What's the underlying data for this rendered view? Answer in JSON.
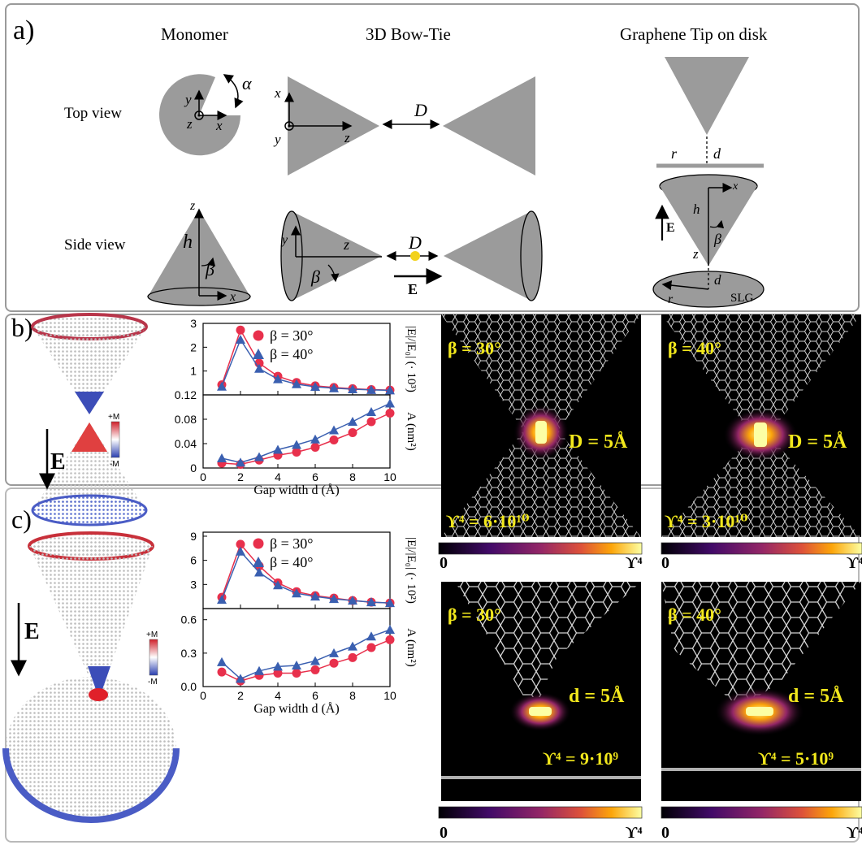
{
  "panel_a": {
    "label": "a)",
    "columns": [
      "Monomer",
      "3D Bow-Tie",
      "Graphene Tip on disk"
    ],
    "rows": [
      "Top view",
      "Side view"
    ],
    "symbols": {
      "alpha": "α",
      "beta": "β",
      "D": "D",
      "h": "h",
      "r": "r",
      "d": "d",
      "x": "x",
      "y": "y",
      "z": "z",
      "E": "E",
      "SLG": "SLG"
    }
  },
  "panel_b": {
    "label": "b)",
    "colorbar_plus": "+M",
    "colorbar_minus": "-M",
    "field_label": "E",
    "maps": [
      {
        "beta": "β = 30°",
        "gap": "D = 5Å",
        "upsilon": "ϒ⁴ = 6·10¹⁰"
      },
      {
        "beta": "β = 40°",
        "gap": "D = 5Å",
        "upsilon": "ϒ⁴ = 3·10¹⁰"
      }
    ],
    "scale_min": "0",
    "scale_max": "ϒ⁴"
  },
  "panel_c": {
    "label": "c)",
    "colorbar_plus": "+M",
    "colorbar_minus": "-M",
    "field_label": "E",
    "maps": [
      {
        "beta": "β = 30°",
        "gap": "d = 5Å",
        "upsilon": "ϒ⁴ = 9·10⁹"
      },
      {
        "beta": "β = 40°",
        "gap": "d = 5Å",
        "upsilon": "ϒ⁴ = 5·10⁹"
      }
    ],
    "scale_min": "0",
    "scale_max": "ϒ⁴"
  },
  "chart_data": [
    {
      "type": "line",
      "panel": "b-top",
      "x": [
        1,
        2,
        3,
        4,
        5,
        6,
        7,
        8,
        9,
        10
      ],
      "series": [
        {
          "name": "β = 30°",
          "color": "#e8304c",
          "marker": "circle",
          "values": [
            0.42,
            2.72,
            1.33,
            0.78,
            0.52,
            0.38,
            0.31,
            0.26,
            0.22,
            0.2
          ]
        },
        {
          "name": "β = 40°",
          "color": "#3a5fb0",
          "marker": "triangle",
          "values": [
            0.35,
            2.32,
            1.1,
            0.66,
            0.45,
            0.34,
            0.28,
            0.24,
            0.21,
            0.19
          ]
        }
      ],
      "ylabel": "|E|/|E₀| (· 10³)",
      "yticks": [
        "1",
        "2",
        "3"
      ],
      "ylim": [
        0,
        3
      ],
      "xlim": [
        0,
        10
      ]
    },
    {
      "type": "line",
      "panel": "b-bottom",
      "x": [
        1,
        2,
        3,
        4,
        5,
        6,
        7,
        8,
        9,
        10
      ],
      "series": [
        {
          "name": "β = 30°",
          "color": "#e8304c",
          "marker": "circle",
          "values": [
            0.008,
            0.006,
            0.013,
            0.021,
            0.026,
            0.034,
            0.046,
            0.058,
            0.076,
            0.09
          ]
        },
        {
          "name": "β = 40°",
          "color": "#3a5fb0",
          "marker": "triangle",
          "values": [
            0.016,
            0.009,
            0.018,
            0.03,
            0.038,
            0.047,
            0.062,
            0.076,
            0.092,
            0.106
          ]
        }
      ],
      "ylabel": "A (nm²)",
      "xlabel": "Gap width d (Å)",
      "xticks": [
        "0",
        "2",
        "4",
        "6",
        "8",
        "10"
      ],
      "yticks": [
        "0",
        "0.04",
        "0.08",
        "0.12"
      ],
      "ylim": [
        0,
        0.12
      ],
      "xlim": [
        0,
        10
      ]
    },
    {
      "type": "line",
      "panel": "c-top",
      "x": [
        1,
        2,
        3,
        4,
        5,
        6,
        7,
        8,
        9,
        10
      ],
      "series": [
        {
          "name": "β = 30°",
          "color": "#e8304c",
          "marker": "circle",
          "values": [
            1.4,
            8.0,
            5.3,
            3.2,
            2.1,
            1.6,
            1.3,
            1.0,
            0.8,
            0.7
          ]
        },
        {
          "name": "β = 40°",
          "color": "#3a5fb0",
          "marker": "triangle",
          "values": [
            1.1,
            7.1,
            4.5,
            2.9,
            1.9,
            1.5,
            1.2,
            1.0,
            0.8,
            0.7
          ]
        }
      ],
      "ylabel": "|E|/|E₀| (· 10²)",
      "yticks": [
        "3",
        "6",
        "9"
      ],
      "ylim": [
        0,
        9.5
      ],
      "xlim": [
        0,
        10
      ]
    },
    {
      "type": "line",
      "panel": "c-bottom",
      "x": [
        1,
        2,
        3,
        4,
        5,
        6,
        7,
        8,
        9,
        10
      ],
      "series": [
        {
          "name": "β = 30°",
          "color": "#e8304c",
          "marker": "circle",
          "values": [
            0.13,
            0.05,
            0.1,
            0.12,
            0.12,
            0.15,
            0.21,
            0.26,
            0.35,
            0.42
          ]
        },
        {
          "name": "β = 40°",
          "color": "#3a5fb0",
          "marker": "triangle",
          "values": [
            0.22,
            0.07,
            0.14,
            0.18,
            0.19,
            0.23,
            0.3,
            0.36,
            0.45,
            0.51
          ]
        }
      ],
      "ylabel": "A (nm²)",
      "xlabel": "Gap width d (Å)",
      "xticks": [
        "0",
        "2",
        "4",
        "6",
        "8",
        "10"
      ],
      "yticks": [
        "0.0",
        "0.3",
        "0.6"
      ],
      "ylim": [
        0,
        0.7
      ],
      "xlim": [
        0,
        10
      ]
    }
  ]
}
